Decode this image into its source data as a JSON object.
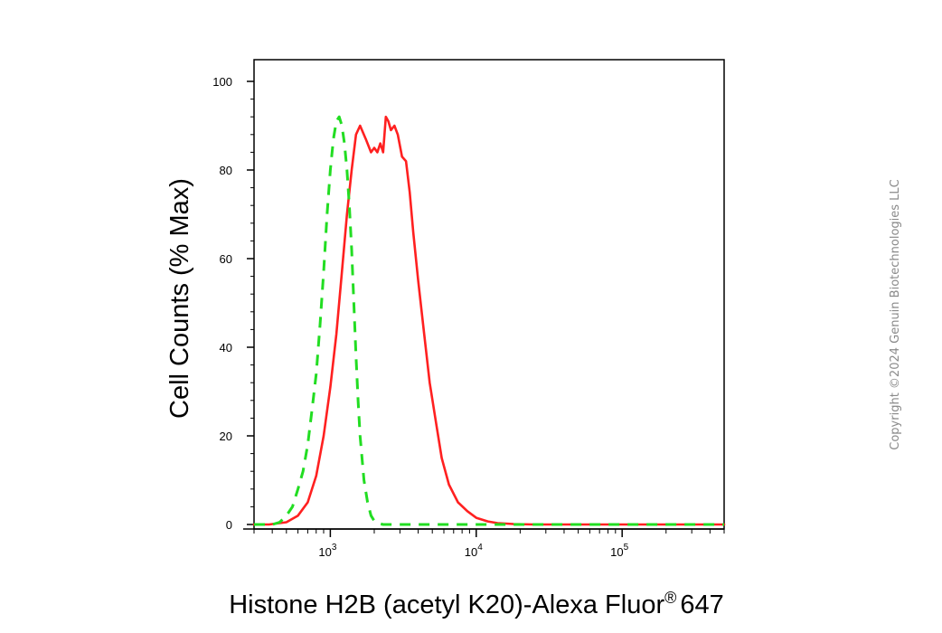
{
  "chart_data": {
    "type": "line",
    "title": "",
    "xlabel": "Histone H2B (acetyl K20)-Alexa Fluor",
    "xlabel_superscript": "®",
    "xlabel_suffix": "647",
    "ylabel": "Cell Counts (% Max)",
    "x_scale": "log",
    "xlim": [
      300,
      500000
    ],
    "ylim": [
      0,
      100
    ],
    "x_ticks": [
      {
        "value": 1000,
        "base": "10",
        "exp": "3"
      },
      {
        "value": 10000,
        "base": "10",
        "exp": "4"
      },
      {
        "value": 100000,
        "base": "10",
        "exp": "5"
      }
    ],
    "y_ticks": [
      0,
      20,
      40,
      60,
      80,
      100
    ],
    "grid": false,
    "legend": "none",
    "series": [
      {
        "color": "#ff2020",
        "dash": "solid",
        "x": [
          300,
          380,
          500,
          600,
          700,
          800,
          900,
          1000,
          1100,
          1200,
          1300,
          1400,
          1500,
          1600,
          1750,
          1900,
          2000,
          2100,
          2200,
          2300,
          2400,
          2500,
          2600,
          2750,
          2900,
          3100,
          3300,
          3500,
          3700,
          4000,
          4400,
          4800,
          5300,
          5800,
          6500,
          7500,
          8700,
          10000,
          12000,
          14000,
          16000,
          18000,
          25000,
          100000,
          500000
        ],
        "y": [
          0,
          0,
          0.5,
          2,
          5,
          11,
          20,
          31,
          43,
          57,
          70,
          80,
          88,
          90,
          87,
          84,
          85,
          84,
          86,
          84,
          92,
          91,
          89,
          90,
          88,
          83,
          82,
          75,
          66,
          55,
          43,
          32,
          23,
          15,
          9,
          5,
          3,
          1.5,
          0.7,
          0.3,
          0.2,
          0.1,
          0,
          0,
          0
        ]
      },
      {
        "color": "#22dd22",
        "dash": "dashed",
        "x": [
          300,
          400,
          450,
          500,
          550,
          600,
          650,
          700,
          750,
          800,
          850,
          900,
          950,
          1000,
          1050,
          1100,
          1150,
          1200,
          1250,
          1300,
          1350,
          1400,
          1450,
          1500,
          1550,
          1600,
          1700,
          1800,
          1900,
          2000,
          2100,
          2300,
          2500,
          3000,
          10000,
          500000
        ],
        "y": [
          0,
          0,
          0.5,
          2,
          4,
          8,
          12,
          18,
          26,
          34,
          45,
          57,
          70,
          80,
          87,
          91,
          92,
          90,
          86,
          80,
          72,
          62,
          50,
          38,
          28,
          20,
          10,
          5,
          2,
          0.8,
          0.3,
          0,
          0,
          0,
          0,
          0
        ]
      }
    ]
  },
  "watermark": "Copyright ©2024 Genuin Biotechnologies LLC"
}
